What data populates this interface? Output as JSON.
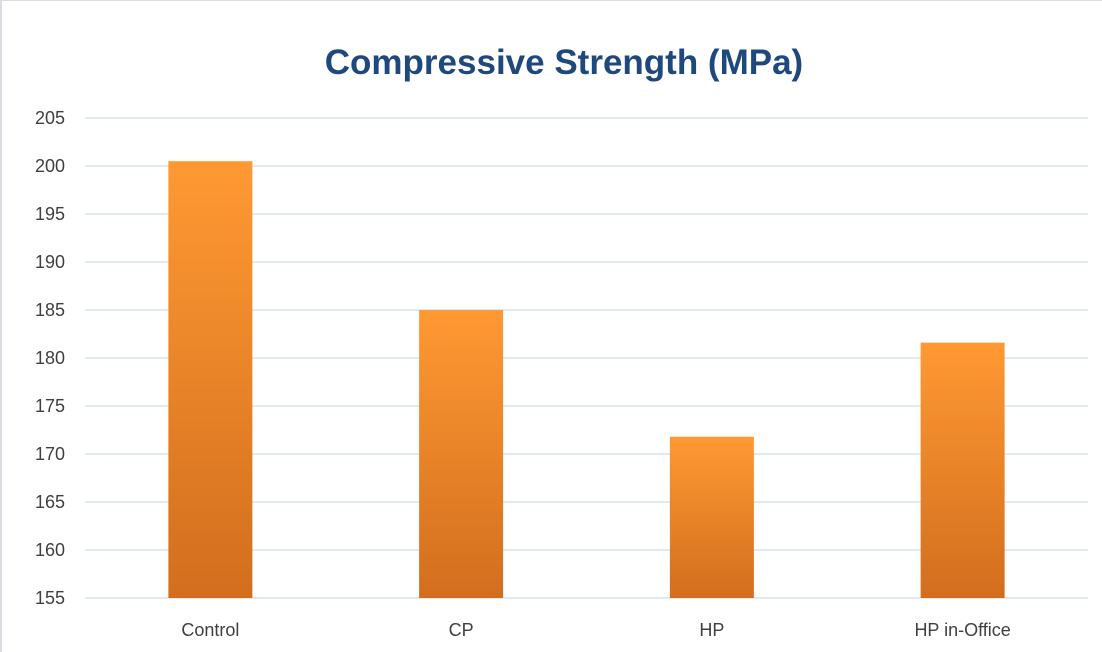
{
  "chart_data": {
    "type": "bar",
    "title": "Compressive Strength (MPa)",
    "xlabel": "",
    "ylabel": "",
    "categories": [
      "Control",
      "CP",
      "HP",
      "HP in-Office"
    ],
    "values": [
      200.5,
      185.0,
      171.8,
      181.6
    ],
    "ylim": [
      155,
      205
    ],
    "yticks": [
      "205",
      "200",
      "195",
      "190",
      "185",
      "180",
      "175",
      "170",
      "165",
      "160",
      "155"
    ],
    "grid": true,
    "legend": "none"
  },
  "colors": {
    "title": "#1f497d",
    "bar_top": "#ff9933",
    "bar_bottom": "#d26e1e",
    "gridline": "#d5e4f2",
    "axis_text": "#404040"
  }
}
